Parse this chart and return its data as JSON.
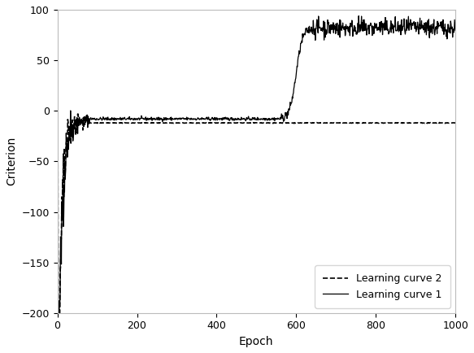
{
  "title": "",
  "xlabel": "Epoch",
  "ylabel": "Criterion",
  "xlim": [
    0,
    1000
  ],
  "ylim": [
    -200,
    100
  ],
  "yticks": [
    -200,
    -150,
    -100,
    -50,
    0,
    50,
    100
  ],
  "xticks": [
    0,
    200,
    400,
    600,
    800,
    1000
  ],
  "legend_entries": [
    "Learning curve 1",
    "Learning curve 2"
  ],
  "legend_loc": "lower right",
  "line_color": "#000000",
  "background_color": "#ffffff",
  "noise_seed": 42,
  "figsize": [
    5.83,
    4.34
  ],
  "dpi": 100,
  "curve1_flat_level": -8,
  "curve1_plateau": 82,
  "curve1_noise_flat": 0.8,
  "curve1_noise_plateau": 4.5,
  "curve2_flat_level": -12,
  "curve2_noise": 0.15,
  "rise_start": 560,
  "rise_end": 640
}
